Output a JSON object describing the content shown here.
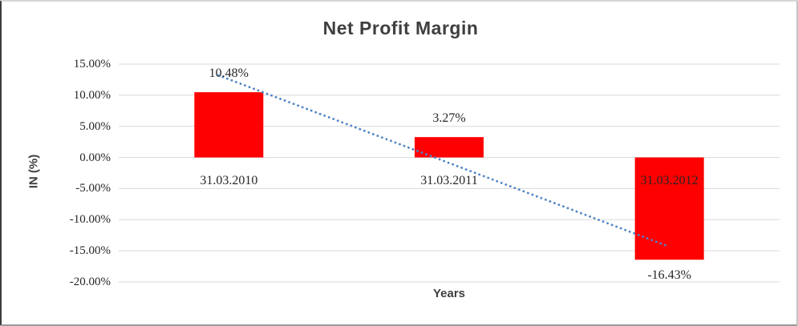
{
  "chart_data": {
    "type": "bar",
    "title": "Net Profit Margin",
    "xlabel": "Years",
    "ylabel": "IN (%)",
    "categories": [
      "31.03.2010",
      "31.03.2011",
      "31.03.2012"
    ],
    "values": [
      10.48,
      3.27,
      -16.43
    ],
    "data_labels": [
      "10.48%",
      "3.27%",
      "-16.43%"
    ],
    "ylim": [
      -20,
      15
    ],
    "yticks": [
      15,
      10,
      5,
      0,
      -5,
      -10,
      -15,
      -20
    ],
    "ytick_labels": [
      "15.00%",
      "10.00%",
      "5.00%",
      "0.00%",
      "-5.00%",
      "-10.00%",
      "-15.00%",
      "-20.00%"
    ],
    "grid": "horizontal",
    "legend": "none",
    "bar_color": "#FF0000",
    "gridline_color": "#D9D9D9",
    "trendline": {
      "type": "linear",
      "style": "dotted",
      "color": "#4E84C6"
    },
    "title_color": "#3F3F3F",
    "label_color": "#262626"
  }
}
